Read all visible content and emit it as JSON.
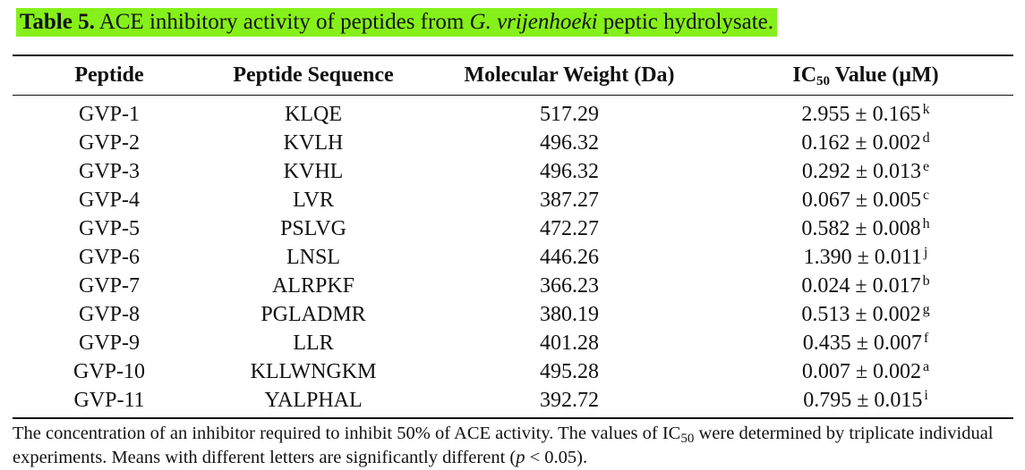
{
  "caption": {
    "label": "Table 5.",
    "text_before": " ACE inhibitory activity of peptides from ",
    "species": "G. vrijenhoeki",
    "text_after": " peptic hydrolysate.",
    "highlight_color": "#86f01a"
  },
  "table": {
    "headers": {
      "peptide": "Peptide",
      "sequence": "Peptide Sequence",
      "mw": "Molecular Weight (Da)",
      "ic50_prefix": "IC",
      "ic50_sub": "50",
      "ic50_suffix": " Value (μM)"
    },
    "rows": [
      {
        "peptide": "GVP-1",
        "sequence": "KLQE",
        "mw": "517.29",
        "ic50": "2.955 ± 0.165",
        "letter": "k"
      },
      {
        "peptide": "GVP-2",
        "sequence": "KVLH",
        "mw": "496.32",
        "ic50": "0.162 ± 0.002",
        "letter": "d"
      },
      {
        "peptide": "GVP-3",
        "sequence": "KVHL",
        "mw": "496.32",
        "ic50": "0.292 ± 0.013",
        "letter": "e"
      },
      {
        "peptide": "GVP-4",
        "sequence": "LVR",
        "mw": "387.27",
        "ic50": "0.067 ± 0.005",
        "letter": "c"
      },
      {
        "peptide": "GVP-5",
        "sequence": "PSLVG",
        "mw": "472.27",
        "ic50": "0.582 ± 0.008",
        "letter": "h"
      },
      {
        "peptide": "GVP-6",
        "sequence": "LNSL",
        "mw": "446.26",
        "ic50": "1.390 ± 0.011",
        "letter": "j"
      },
      {
        "peptide": "GVP-7",
        "sequence": "ALRPKF",
        "mw": "366.23",
        "ic50": "0.024 ± 0.017",
        "letter": "b"
      },
      {
        "peptide": "GVP-8",
        "sequence": "PGLADMR",
        "mw": "380.19",
        "ic50": "0.513 ± 0.002",
        "letter": "g"
      },
      {
        "peptide": "GVP-9",
        "sequence": "LLR",
        "mw": "401.28",
        "ic50": "0.435 ± 0.007",
        "letter": "f"
      },
      {
        "peptide": "GVP-10",
        "sequence": "KLLWNGKM",
        "mw": "495.28",
        "ic50": "0.007 ± 0.002",
        "letter": "a"
      },
      {
        "peptide": "GVP-11",
        "sequence": "YALPHAL",
        "mw": "392.72",
        "ic50": "0.795 ± 0.015",
        "letter": "i"
      }
    ]
  },
  "footnote": {
    "text_1": "The concentration of an inhibitor required to inhibit 50% of ACE activity. The values of IC",
    "sub": "50",
    "text_2": " were determined by triplicate individual experiments. Means with different letters are significantly different (",
    "p": "p",
    "text_3": " < 0.05)."
  }
}
